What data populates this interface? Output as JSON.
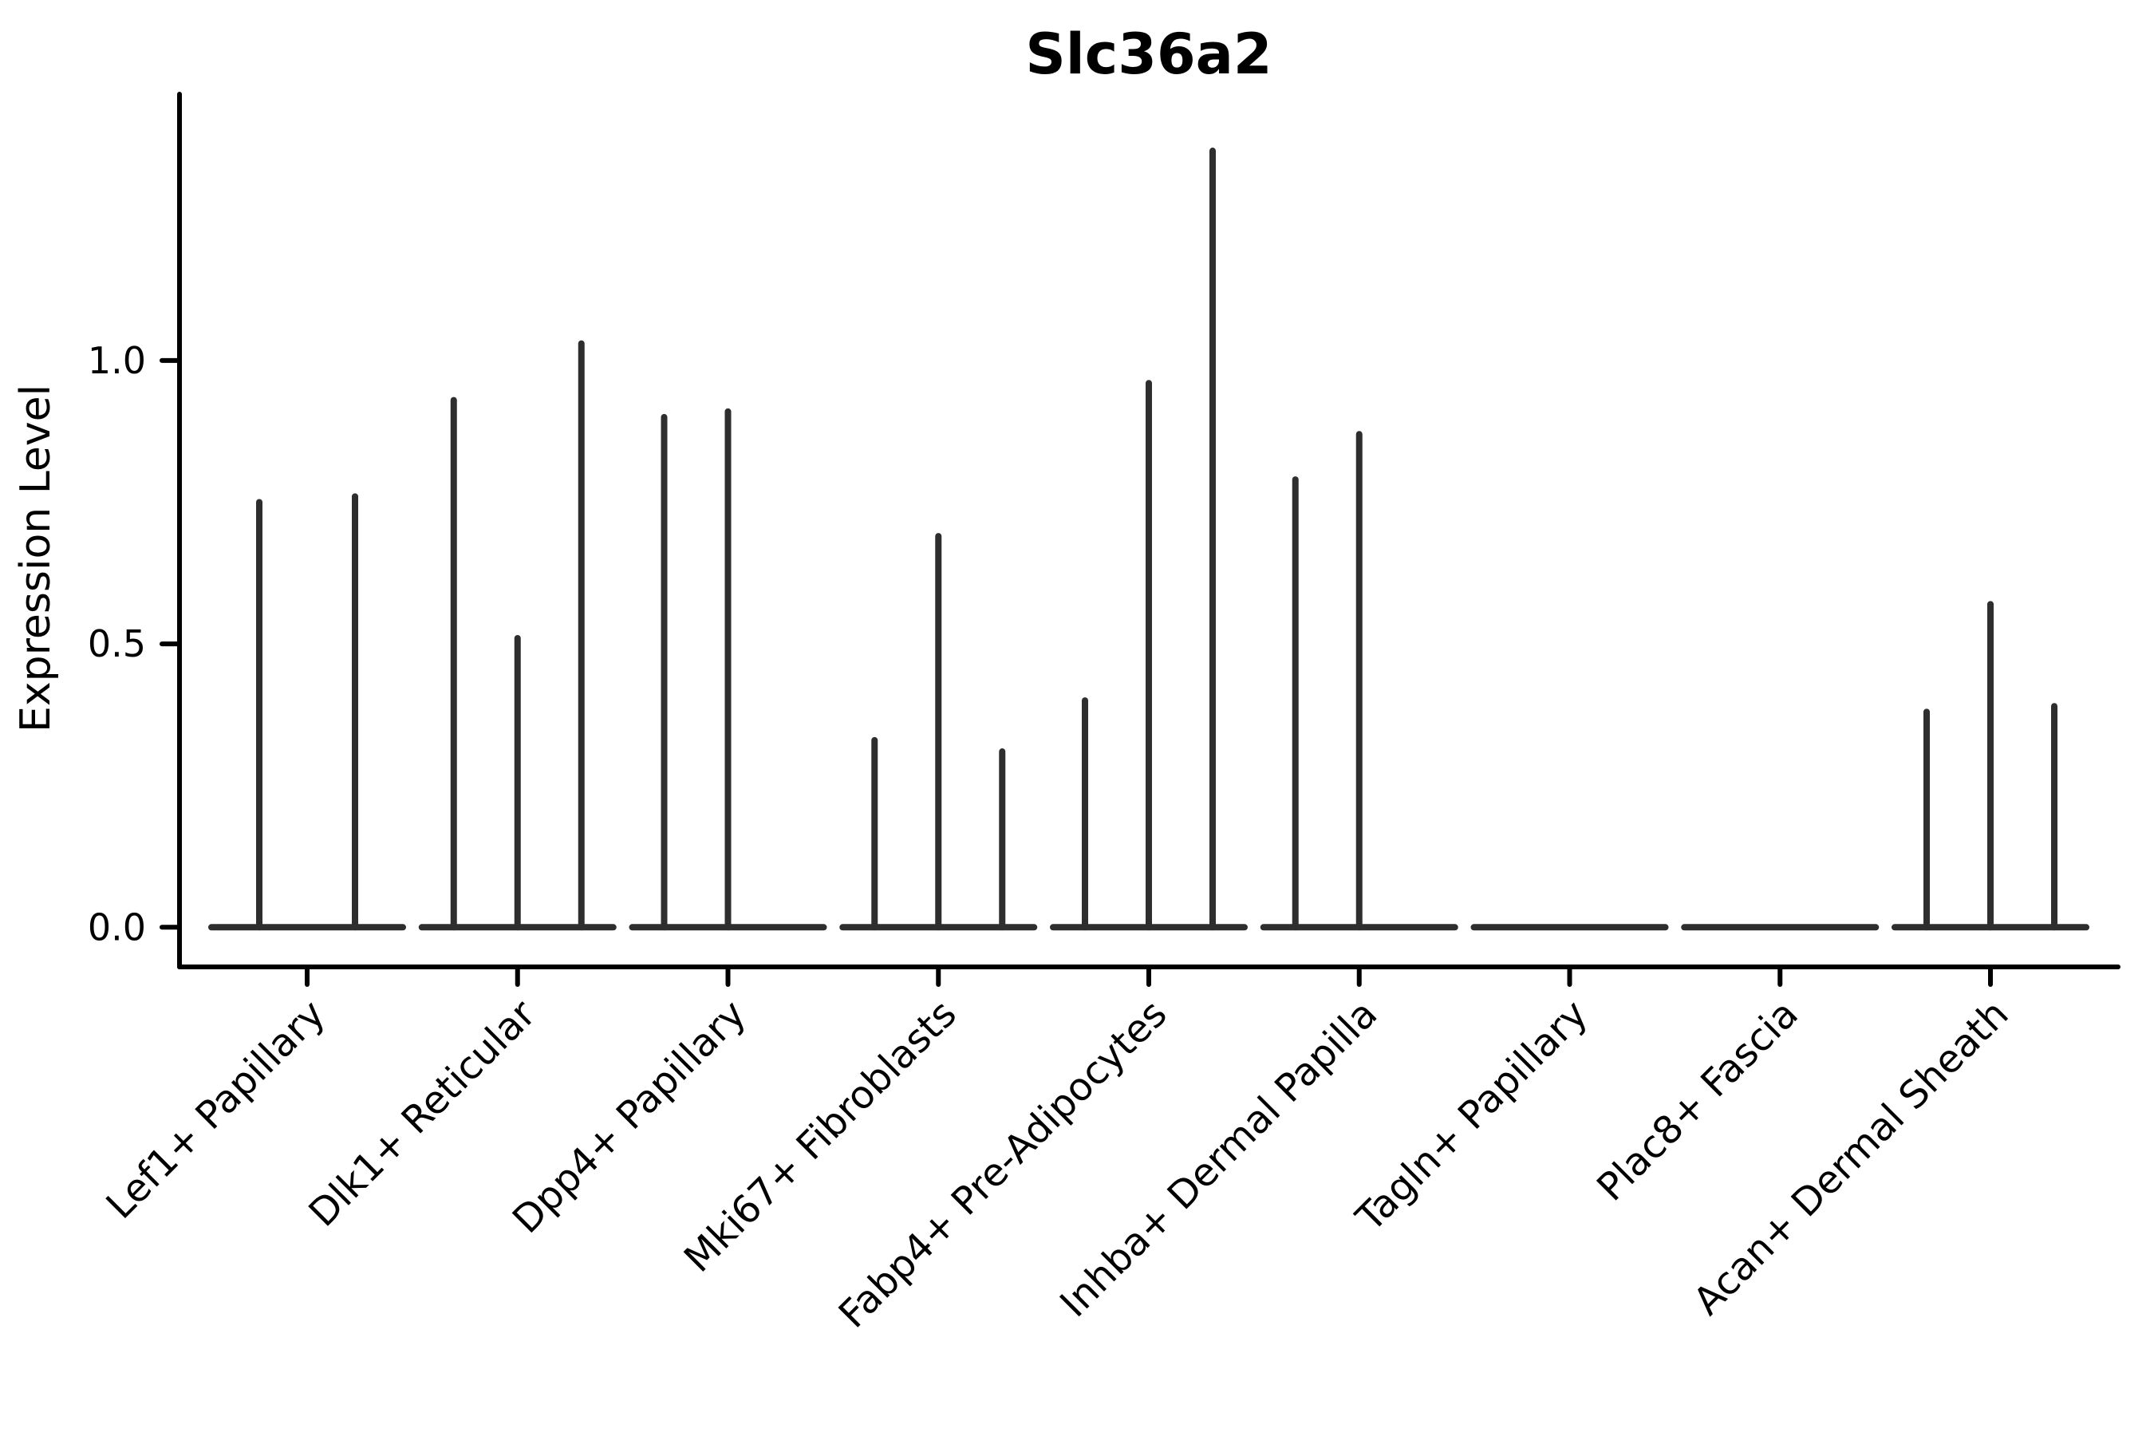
{
  "chart_data": {
    "type": "violin",
    "title": "Slc36a2",
    "ylabel": "Expression Level",
    "xlabel": "",
    "yticks": [
      0.0,
      0.5,
      1.0
    ],
    "ytick_labels": [
      "0.0",
      "0.5",
      "1.0"
    ],
    "ylim": [
      -0.07,
      1.47
    ],
    "grid": false,
    "legend": null,
    "violin_color": "#2e2e2e",
    "axis_color": "#000000",
    "background_color": "#ffffff",
    "categories": [
      {
        "label": "Lef1+ Papillary",
        "violin_max": [
          0.75,
          0.76
        ]
      },
      {
        "label": "Dlk1+ Reticular",
        "violin_max": [
          0.93,
          0.51,
          1.03
        ]
      },
      {
        "label": "Dpp4+ Papillary",
        "violin_max": [
          0.9,
          0.91,
          0
        ]
      },
      {
        "label": "Mki67+ Fibroblasts",
        "violin_max": [
          0.33,
          0.69,
          0.31
        ]
      },
      {
        "label": "Fabp4+ Pre-Adipocytes",
        "violin_max": [
          0.4,
          0.96,
          1.37
        ]
      },
      {
        "label": "Inhba+ Dermal Papilla",
        "violin_max": [
          0.79,
          0.87,
          0
        ]
      },
      {
        "label": "Tagln+ Papillary",
        "violin_max": [
          0,
          0,
          0
        ]
      },
      {
        "label": "Plac8+ Fascia",
        "violin_max": [
          0,
          0,
          0
        ]
      },
      {
        "label": "Acan+ Dermal Sheath",
        "violin_max": [
          0.38,
          0.57,
          0.39
        ]
      }
    ]
  }
}
